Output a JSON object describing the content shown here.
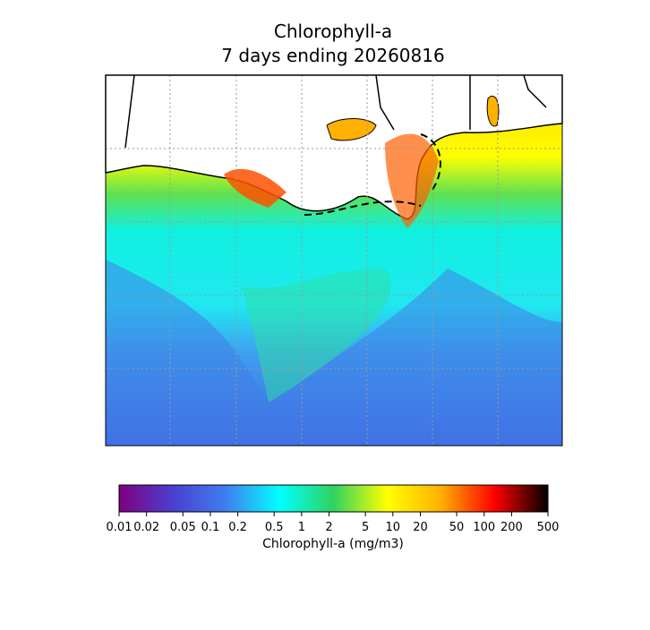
{
  "title": "Chlorophyll-a",
  "subtitle": "7 days ending 20260816",
  "colorbar": {
    "label": "Chlorophyll-a (mg/m3)",
    "log": true,
    "lim": [
      0.01,
      500
    ],
    "ticks": [
      0.01,
      0.02,
      0.05,
      0.1,
      0.2,
      0.5,
      1,
      2,
      5,
      10,
      20,
      50,
      100,
      200,
      500
    ],
    "colormap": [
      "#7f007f",
      "#4b3fcf",
      "#3f7fef",
      "#00ffff",
      "#2fd35f",
      "#ffff00",
      "#ffb000",
      "#ff0000",
      "#000000"
    ]
  }
}
